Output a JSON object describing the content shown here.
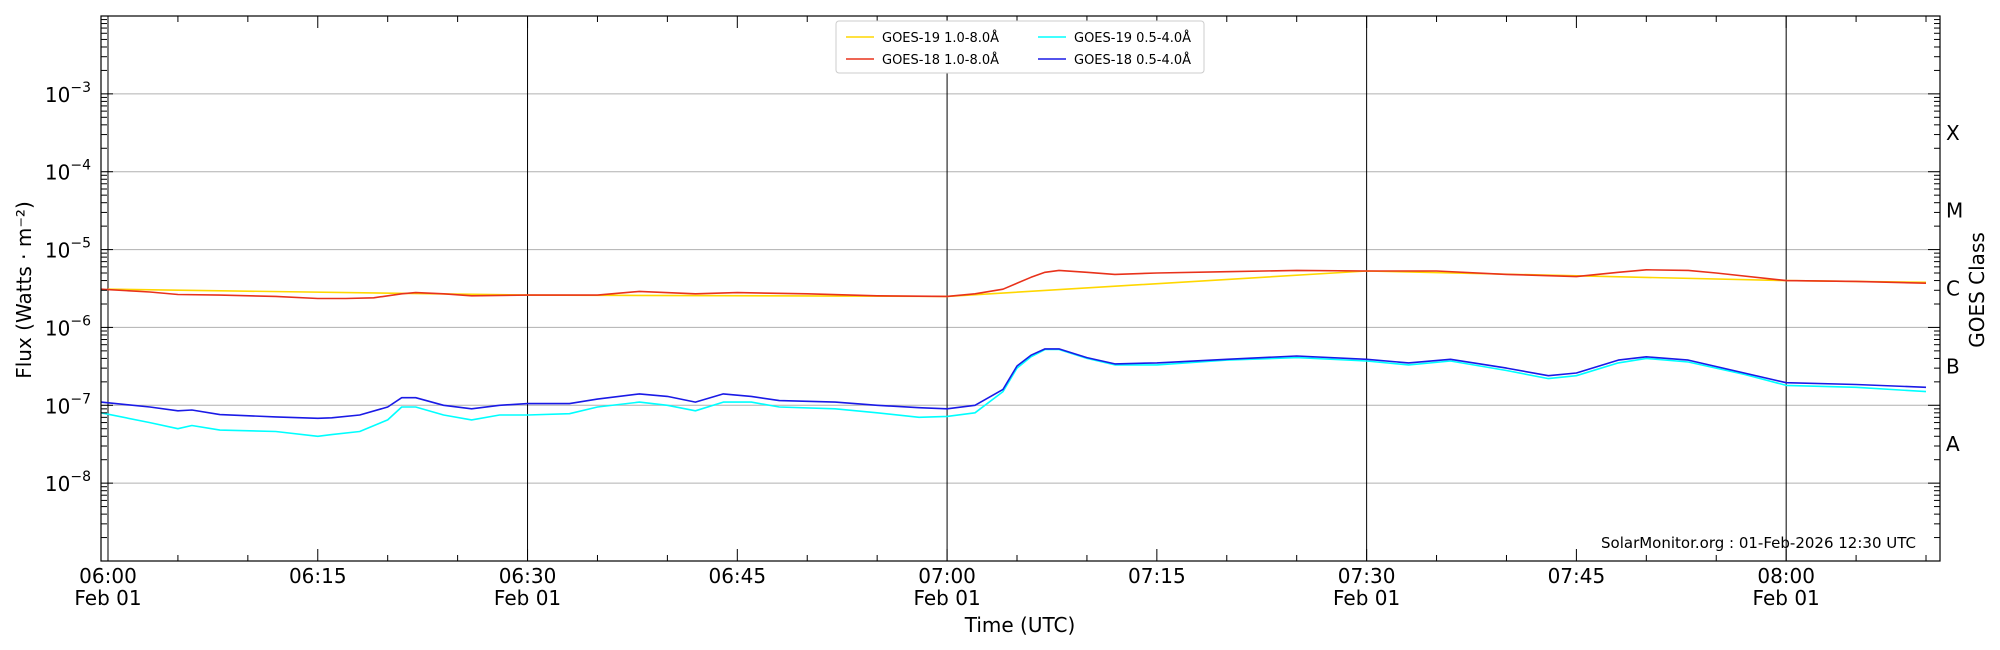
{
  "chart_data": {
    "type": "line",
    "xlabel": "Time (UTC)",
    "ylabel": "Flux (Watts · m⁻²)",
    "right_axis_label": "GOES Class",
    "credit": "SolarMonitor.org : 01-Feb-2026 12:30 UTC",
    "x_range": [
      "05:59.5",
      "08:11"
    ],
    "ylim": [
      1e-09,
      0.01
    ],
    "y_scale": "log",
    "grid": "horizontal at each decade",
    "legend_position": "top-center",
    "x_ticks": [
      {
        "time": "06:00",
        "date": "Feb 01"
      },
      {
        "time": "06:15",
        "date": ""
      },
      {
        "time": "06:30",
        "date": "Feb 01"
      },
      {
        "time": "06:45",
        "date": ""
      },
      {
        "time": "07:00",
        "date": "Feb 01"
      },
      {
        "time": "07:15",
        "date": ""
      },
      {
        "time": "07:30",
        "date": "Feb 01"
      },
      {
        "time": "07:45",
        "date": ""
      },
      {
        "time": "08:00",
        "date": "Feb 01"
      }
    ],
    "vertical_lines_at": [
      "06:00",
      "06:30",
      "07:00",
      "07:30",
      "08:00"
    ],
    "y_ticks": [
      {
        "value": 0.001,
        "base": "10",
        "exp": "−3"
      },
      {
        "value": 0.0001,
        "base": "10",
        "exp": "−4"
      },
      {
        "value": 1e-05,
        "base": "10",
        "exp": "−5"
      },
      {
        "value": 1e-06,
        "base": "10",
        "exp": "−6"
      },
      {
        "value": 1e-07,
        "base": "10",
        "exp": "−7"
      },
      {
        "value": 1e-08,
        "base": "10",
        "exp": "−8"
      }
    ],
    "goes_classes": [
      {
        "label": "X",
        "value": 0.000316
      },
      {
        "label": "M",
        "value": 3.16e-05
      },
      {
        "label": "C",
        "value": 3.16e-06
      },
      {
        "label": "B",
        "value": 3.16e-07
      },
      {
        "label": "A",
        "value": 3.16e-08
      }
    ],
    "series": [
      {
        "name": "GOES-19 1.0-8.0Å",
        "color": "#ffd700",
        "legend_col": 0,
        "t": [
          "06:00",
          "06:30",
          "07:00",
          "07:30",
          "08:00",
          "08:10"
        ],
        "y": [
          3.1e-06,
          2.6e-06,
          2.5e-06,
          5.3e-06,
          4e-06,
          3.8e-06
        ]
      },
      {
        "name": "GOES-18 1.0-8.0Å",
        "color": "#e8321b",
        "legend_col": 0,
        "t": [
          "05:59.5",
          "06:03",
          "06:05",
          "06:08",
          "06:12",
          "06:15",
          "06:17",
          "06:19",
          "06:21",
          "06:22",
          "06:24",
          "06:26",
          "06:30",
          "06:35",
          "06:38",
          "06:42",
          "06:45",
          "06:50",
          "06:55",
          "07:00",
          "07:02",
          "07:04",
          "07:06",
          "07:07",
          "07:08",
          "07:10",
          "07:12",
          "07:15",
          "07:20",
          "07:25",
          "07:30",
          "07:35",
          "07:40",
          "07:45",
          "07:48",
          "07:50",
          "07:53",
          "07:55",
          "08:00",
          "08:05",
          "08:10"
        ],
        "y": [
          3.1e-06,
          2.85e-06,
          2.65e-06,
          2.6e-06,
          2.5e-06,
          2.35e-06,
          2.35e-06,
          2.4e-06,
          2.7e-06,
          2.8e-06,
          2.7e-06,
          2.55e-06,
          2.6e-06,
          2.6e-06,
          2.9e-06,
          2.7e-06,
          2.8e-06,
          2.7e-06,
          2.55e-06,
          2.5e-06,
          2.7e-06,
          3.1e-06,
          4.4e-06,
          5.1e-06,
          5.4e-06,
          5.1e-06,
          4.8e-06,
          5e-06,
          5.2e-06,
          5.4e-06,
          5.3e-06,
          5.3e-06,
          4.8e-06,
          4.5e-06,
          5.1e-06,
          5.5e-06,
          5.4e-06,
          5e-06,
          4e-06,
          3.9e-06,
          3.7e-06
        ]
      },
      {
        "name": "GOES-19 0.5-4.0Å",
        "color": "#00ffff",
        "legend_col": 1,
        "t": [
          "05:59.5",
          "06:03",
          "06:05",
          "06:06",
          "06:08",
          "06:12",
          "06:15",
          "06:16",
          "06:18",
          "06:20",
          "06:21",
          "06:22",
          "06:24",
          "06:26",
          "06:28",
          "06:30",
          "06:33",
          "06:35",
          "06:38",
          "06:40",
          "06:42",
          "06:44",
          "06:46",
          "06:48",
          "06:52",
          "06:55",
          "06:58",
          "07:00",
          "07:02",
          "07:04",
          "07:05",
          "07:06",
          "07:07",
          "07:08",
          "07:10",
          "07:12",
          "07:15",
          "07:20",
          "07:25",
          "07:30",
          "07:33",
          "07:36",
          "07:40",
          "07:43",
          "07:45",
          "07:48",
          "07:50",
          "07:53",
          "07:57",
          "08:00",
          "08:05",
          "08:10"
        ],
        "y": [
          8e-08,
          6e-08,
          5e-08,
          5.5e-08,
          4.8e-08,
          4.6e-08,
          4e-08,
          4.2e-08,
          4.6e-08,
          6.5e-08,
          9.5e-08,
          9.5e-08,
          7.5e-08,
          6.5e-08,
          7.5e-08,
          7.5e-08,
          7.8e-08,
          9.5e-08,
          1.1e-07,
          1e-07,
          8.5e-08,
          1.1e-07,
          1.1e-07,
          9.5e-08,
          9e-08,
          8e-08,
          7e-08,
          7.2e-08,
          8e-08,
          1.5e-07,
          3e-07,
          4.2e-07,
          5.2e-07,
          5.2e-07,
          4e-07,
          3.3e-07,
          3.3e-07,
          3.8e-07,
          4.1e-07,
          3.7e-07,
          3.3e-07,
          3.7e-07,
          2.8e-07,
          2.2e-07,
          2.4e-07,
          3.5e-07,
          4e-07,
          3.6e-07,
          2.5e-07,
          1.8e-07,
          1.7e-07,
          1.5e-07
        ]
      },
      {
        "name": "GOES-18 0.5-4.0Å",
        "color": "#1a1ae6",
        "legend_col": 1,
        "t": [
          "05:59.5",
          "06:03",
          "06:05",
          "06:06",
          "06:08",
          "06:12",
          "06:15",
          "06:16",
          "06:18",
          "06:20",
          "06:21",
          "06:22",
          "06:24",
          "06:26",
          "06:28",
          "06:30",
          "06:33",
          "06:35",
          "06:38",
          "06:40",
          "06:42",
          "06:44",
          "06:46",
          "06:48",
          "06:52",
          "06:55",
          "06:58",
          "07:00",
          "07:02",
          "07:04",
          "07:05",
          "07:06",
          "07:07",
          "07:08",
          "07:10",
          "07:12",
          "07:15",
          "07:20",
          "07:25",
          "07:30",
          "07:33",
          "07:36",
          "07:40",
          "07:43",
          "07:45",
          "07:48",
          "07:50",
          "07:53",
          "07:57",
          "08:00",
          "08:05",
          "08:10"
        ],
        "y": [
          1.1e-07,
          9.5e-08,
          8.5e-08,
          8.7e-08,
          7.6e-08,
          7.1e-08,
          6.8e-08,
          6.9e-08,
          7.5e-08,
          9.5e-08,
          1.25e-07,
          1.25e-07,
          1e-07,
          9e-08,
          1e-07,
          1.05e-07,
          1.05e-07,
          1.2e-07,
          1.4e-07,
          1.3e-07,
          1.1e-07,
          1.4e-07,
          1.3e-07,
          1.15e-07,
          1.1e-07,
          1e-07,
          9.3e-08,
          9e-08,
          1e-07,
          1.6e-07,
          3.2e-07,
          4.4e-07,
          5.3e-07,
          5.3e-07,
          4.1e-07,
          3.4e-07,
          3.5e-07,
          3.9e-07,
          4.3e-07,
          3.9e-07,
          3.5e-07,
          3.9e-07,
          3e-07,
          2.4e-07,
          2.6e-07,
          3.8e-07,
          4.2e-07,
          3.8e-07,
          2.6e-07,
          1.95e-07,
          1.85e-07,
          1.7e-07
        ]
      }
    ]
  }
}
